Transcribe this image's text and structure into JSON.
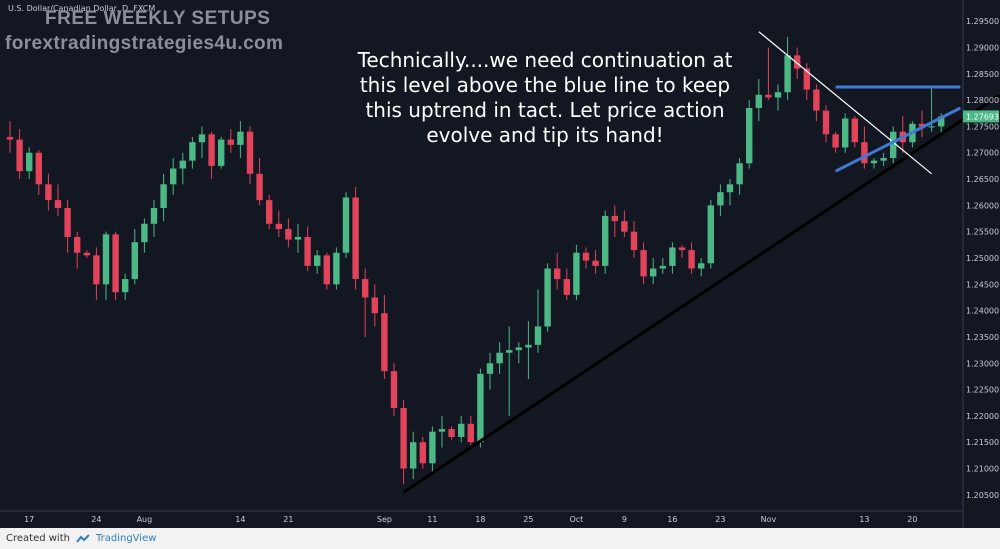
{
  "header": {
    "symbol": "U.S. Dollar/Canadian Dollar, D, FXCM",
    "watermark_title": "FREE WEEKLY SETUPS",
    "watermark_site": "forextradingstrategies4u.com"
  },
  "annotation": {
    "lines": [
      "Technically....we need continuation at",
      "this level above the blue line to keep",
      "this uptrend in tact.  Let price action",
      "evolve and tip its hand!"
    ]
  },
  "footer": {
    "created_with": "Created with",
    "brand": "TradingView"
  },
  "colors": {
    "background": "#131722",
    "bull": "#4bb886",
    "bear": "#e0435a",
    "trend_black": "#000000",
    "trend_white": "#ffffff",
    "trend_blue": "#3f7bd6"
  },
  "current_price_label": "1.27693",
  "chart_data": {
    "type": "candlestick",
    "title": "",
    "xlabel": "",
    "ylabel": "",
    "ylim": [
      1.2025,
      1.2975
    ],
    "price_ticks": [
      "1.29500",
      "1.29000",
      "1.28500",
      "1.28000",
      "1.27500",
      "1.27000",
      "1.26500",
      "1.26000",
      "1.25500",
      "1.25000",
      "1.24500",
      "1.24000",
      "1.23500",
      "1.23000",
      "1.22500",
      "1.22000",
      "1.21500",
      "1.21000",
      "1.20500"
    ],
    "time_ticks": [
      "17",
      "24",
      "Aug",
      "14",
      "21",
      "Sep",
      "11",
      "18",
      "25",
      "Oct",
      "9",
      "16",
      "23",
      "Nov",
      "13",
      "20"
    ],
    "candles": [
      {
        "o": 1.273,
        "h": 1.276,
        "l": 1.27,
        "c": 1.2725
      },
      {
        "o": 1.2725,
        "h": 1.2745,
        "l": 1.265,
        "c": 1.2665
      },
      {
        "o": 1.2665,
        "h": 1.271,
        "l": 1.265,
        "c": 1.27
      },
      {
        "o": 1.27,
        "h": 1.2705,
        "l": 1.262,
        "c": 1.264
      },
      {
        "o": 1.264,
        "h": 1.266,
        "l": 1.259,
        "c": 1.261
      },
      {
        "o": 1.261,
        "h": 1.264,
        "l": 1.258,
        "c": 1.2595
      },
      {
        "o": 1.2595,
        "h": 1.261,
        "l": 1.251,
        "c": 1.254
      },
      {
        "o": 1.254,
        "h": 1.255,
        "l": 1.248,
        "c": 1.251
      },
      {
        "o": 1.251,
        "h": 1.2515,
        "l": 1.25,
        "c": 1.2505
      },
      {
        "o": 1.2505,
        "h": 1.252,
        "l": 1.242,
        "c": 1.245
      },
      {
        "o": 1.245,
        "h": 1.255,
        "l": 1.242,
        "c": 1.2545
      },
      {
        "o": 1.2545,
        "h": 1.255,
        "l": 1.242,
        "c": 1.2435
      },
      {
        "o": 1.2435,
        "h": 1.247,
        "l": 1.242,
        "c": 1.246
      },
      {
        "o": 1.246,
        "h": 1.2555,
        "l": 1.245,
        "c": 1.253
      },
      {
        "o": 1.253,
        "h": 1.2575,
        "l": 1.251,
        "c": 1.2565
      },
      {
        "o": 1.2565,
        "h": 1.261,
        "l": 1.254,
        "c": 1.2595
      },
      {
        "o": 1.2595,
        "h": 1.266,
        "l": 1.257,
        "c": 1.264
      },
      {
        "o": 1.264,
        "h": 1.269,
        "l": 1.262,
        "c": 1.267
      },
      {
        "o": 1.267,
        "h": 1.27,
        "l": 1.264,
        "c": 1.2685
      },
      {
        "o": 1.2685,
        "h": 1.273,
        "l": 1.267,
        "c": 1.272
      },
      {
        "o": 1.272,
        "h": 1.275,
        "l": 1.269,
        "c": 1.2735
      },
      {
        "o": 1.2735,
        "h": 1.274,
        "l": 1.265,
        "c": 1.2675
      },
      {
        "o": 1.2675,
        "h": 1.273,
        "l": 1.267,
        "c": 1.2725
      },
      {
        "o": 1.2725,
        "h": 1.2745,
        "l": 1.27,
        "c": 1.2715
      },
      {
        "o": 1.2715,
        "h": 1.276,
        "l": 1.269,
        "c": 1.274
      },
      {
        "o": 1.274,
        "h": 1.275,
        "l": 1.264,
        "c": 1.266
      },
      {
        "o": 1.266,
        "h": 1.269,
        "l": 1.26,
        "c": 1.261
      },
      {
        "o": 1.261,
        "h": 1.262,
        "l": 1.2555,
        "c": 1.2565
      },
      {
        "o": 1.2565,
        "h": 1.259,
        "l": 1.254,
        "c": 1.2555
      },
      {
        "o": 1.2555,
        "h": 1.2575,
        "l": 1.252,
        "c": 1.2535
      },
      {
        "o": 1.2535,
        "h": 1.2565,
        "l": 1.251,
        "c": 1.254
      },
      {
        "o": 1.254,
        "h": 1.256,
        "l": 1.2475,
        "c": 1.2485
      },
      {
        "o": 1.2485,
        "h": 1.2515,
        "l": 1.247,
        "c": 1.2505
      },
      {
        "o": 1.2505,
        "h": 1.251,
        "l": 1.244,
        "c": 1.245
      },
      {
        "o": 1.245,
        "h": 1.252,
        "l": 1.244,
        "c": 1.251
      },
      {
        "o": 1.251,
        "h": 1.2625,
        "l": 1.25,
        "c": 1.2615
      },
      {
        "o": 1.2615,
        "h": 1.2635,
        "l": 1.244,
        "c": 1.246
      },
      {
        "o": 1.246,
        "h": 1.248,
        "l": 1.235,
        "c": 1.2425
      },
      {
        "o": 1.2425,
        "h": 1.245,
        "l": 1.237,
        "c": 1.2395
      },
      {
        "o": 1.2395,
        "h": 1.243,
        "l": 1.227,
        "c": 1.2285
      },
      {
        "o": 1.2285,
        "h": 1.23,
        "l": 1.22,
        "c": 1.2215
      },
      {
        "o": 1.2215,
        "h": 1.223,
        "l": 1.207,
        "c": 1.21
      },
      {
        "o": 1.21,
        "h": 1.217,
        "l": 1.208,
        "c": 1.215
      },
      {
        "o": 1.215,
        "h": 1.216,
        "l": 1.21,
        "c": 1.211
      },
      {
        "o": 1.211,
        "h": 1.218,
        "l": 1.209,
        "c": 1.217
      },
      {
        "o": 1.217,
        "h": 1.22,
        "l": 1.214,
        "c": 1.2175
      },
      {
        "o": 1.2175,
        "h": 1.218,
        "l": 1.2155,
        "c": 1.216
      },
      {
        "o": 1.216,
        "h": 1.22,
        "l": 1.215,
        "c": 1.2185
      },
      {
        "o": 1.2185,
        "h": 1.22,
        "l": 1.2145,
        "c": 1.215
      },
      {
        "o": 1.215,
        "h": 1.229,
        "l": 1.214,
        "c": 1.228
      },
      {
        "o": 1.228,
        "h": 1.232,
        "l": 1.225,
        "c": 1.23
      },
      {
        "o": 1.23,
        "h": 1.234,
        "l": 1.228,
        "c": 1.232
      },
      {
        "o": 1.232,
        "h": 1.237,
        "l": 1.22,
        "c": 1.2325
      },
      {
        "o": 1.2325,
        "h": 1.234,
        "l": 1.23,
        "c": 1.233
      },
      {
        "o": 1.233,
        "h": 1.238,
        "l": 1.227,
        "c": 1.2335
      },
      {
        "o": 1.2335,
        "h": 1.244,
        "l": 1.232,
        "c": 1.237
      },
      {
        "o": 1.237,
        "h": 1.249,
        "l": 1.236,
        "c": 1.248
      },
      {
        "o": 1.248,
        "h": 1.251,
        "l": 1.244,
        "c": 1.246
      },
      {
        "o": 1.246,
        "h": 1.248,
        "l": 1.242,
        "c": 1.243
      },
      {
        "o": 1.243,
        "h": 1.2525,
        "l": 1.242,
        "c": 1.251
      },
      {
        "o": 1.251,
        "h": 1.252,
        "l": 1.248,
        "c": 1.2495
      },
      {
        "o": 1.2495,
        "h": 1.2515,
        "l": 1.247,
        "c": 1.2485
      },
      {
        "o": 1.2485,
        "h": 1.259,
        "l": 1.247,
        "c": 1.258
      },
      {
        "o": 1.258,
        "h": 1.26,
        "l": 1.254,
        "c": 1.257
      },
      {
        "o": 1.257,
        "h": 1.259,
        "l": 1.254,
        "c": 1.255
      },
      {
        "o": 1.255,
        "h": 1.257,
        "l": 1.25,
        "c": 1.2515
      },
      {
        "o": 1.2515,
        "h": 1.253,
        "l": 1.245,
        "c": 1.2465
      },
      {
        "o": 1.2465,
        "h": 1.25,
        "l": 1.245,
        "c": 1.248
      },
      {
        "o": 1.248,
        "h": 1.25,
        "l": 1.247,
        "c": 1.2485
      },
      {
        "o": 1.2485,
        "h": 1.253,
        "l": 1.247,
        "c": 1.252
      },
      {
        "o": 1.252,
        "h": 1.2525,
        "l": 1.25,
        "c": 1.2515
      },
      {
        "o": 1.2515,
        "h": 1.253,
        "l": 1.247,
        "c": 1.248
      },
      {
        "o": 1.248,
        "h": 1.25,
        "l": 1.2465,
        "c": 1.249
      },
      {
        "o": 1.249,
        "h": 1.261,
        "l": 1.248,
        "c": 1.26
      },
      {
        "o": 1.26,
        "h": 1.264,
        "l": 1.258,
        "c": 1.2625
      },
      {
        "o": 1.2625,
        "h": 1.265,
        "l": 1.26,
        "c": 1.264
      },
      {
        "o": 1.264,
        "h": 1.269,
        "l": 1.262,
        "c": 1.268
      },
      {
        "o": 1.268,
        "h": 1.28,
        "l": 1.267,
        "c": 1.2785
      },
      {
        "o": 1.2785,
        "h": 1.284,
        "l": 1.276,
        "c": 1.281
      },
      {
        "o": 1.281,
        "h": 1.29,
        "l": 1.28,
        "c": 1.2805
      },
      {
        "o": 1.2805,
        "h": 1.283,
        "l": 1.278,
        "c": 1.2815
      },
      {
        "o": 1.2815,
        "h": 1.292,
        "l": 1.28,
        "c": 1.2885
      },
      {
        "o": 1.2885,
        "h": 1.29,
        "l": 1.284,
        "c": 1.286
      },
      {
        "o": 1.286,
        "h": 1.287,
        "l": 1.28,
        "c": 1.282
      },
      {
        "o": 1.282,
        "h": 1.283,
        "l": 1.276,
        "c": 1.278
      },
      {
        "o": 1.278,
        "h": 1.279,
        "l": 1.272,
        "c": 1.2735
      },
      {
        "o": 1.2735,
        "h": 1.274,
        "l": 1.27,
        "c": 1.271
      },
      {
        "o": 1.271,
        "h": 1.2775,
        "l": 1.27,
        "c": 1.2765
      },
      {
        "o": 1.2765,
        "h": 1.277,
        "l": 1.271,
        "c": 1.272
      },
      {
        "o": 1.272,
        "h": 1.275,
        "l": 1.267,
        "c": 1.268
      },
      {
        "o": 1.268,
        "h": 1.269,
        "l": 1.267,
        "c": 1.2685
      },
      {
        "o": 1.2685,
        "h": 1.27,
        "l": 1.2675,
        "c": 1.269
      },
      {
        "o": 1.269,
        "h": 1.275,
        "l": 1.268,
        "c": 1.274
      },
      {
        "o": 1.274,
        "h": 1.277,
        "l": 1.27,
        "c": 1.272
      },
      {
        "o": 1.272,
        "h": 1.276,
        "l": 1.271,
        "c": 1.2755
      },
      {
        "o": 1.2755,
        "h": 1.278,
        "l": 1.273,
        "c": 1.275
      },
      {
        "o": 1.275,
        "h": 1.2825,
        "l": 1.274,
        "c": 1.275
      },
      {
        "o": 1.275,
        "h": 1.2775,
        "l": 1.2735,
        "c": 1.2769
      }
    ],
    "trendlines": [
      {
        "name": "support",
        "color": "#000000",
        "from": {
          "i": 41,
          "p": 1.2055
        },
        "to": {
          "i": 114,
          "p": 1.281
        }
      },
      {
        "name": "downtrend",
        "color": "#ffffff",
        "from": {
          "i": 78,
          "p": 1.293
        },
        "to": {
          "i": 96,
          "p": 1.266
        }
      },
      {
        "name": "resistance",
        "color": "#3f7bd6",
        "from": {
          "i": 86,
          "p": 1.2825
        },
        "to": {
          "i": 99,
          "p": 1.2825
        }
      },
      {
        "name": "rising-support",
        "color": "#3f7bd6",
        "from": {
          "i": 86,
          "p": 1.2665
        },
        "to": {
          "i": 99,
          "p": 1.2785
        }
      }
    ]
  }
}
